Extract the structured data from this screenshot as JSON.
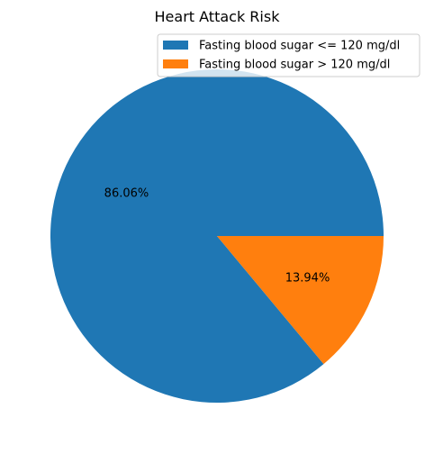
{
  "chart_data": {
    "type": "pie",
    "title": "Heart Attack Risk",
    "categories": [
      "Fasting blood sugar <= 120 mg/dl",
      "Fasting blood sugar > 120 mg/dl"
    ],
    "values": [
      86.06,
      13.94
    ],
    "labels": [
      "86.06%",
      "13.94%"
    ],
    "colors": [
      "#1f77b4",
      "#ff7f0e"
    ],
    "start_angle_deg": 0,
    "direction": "counterclockwise",
    "legend_position": "upper-right"
  }
}
